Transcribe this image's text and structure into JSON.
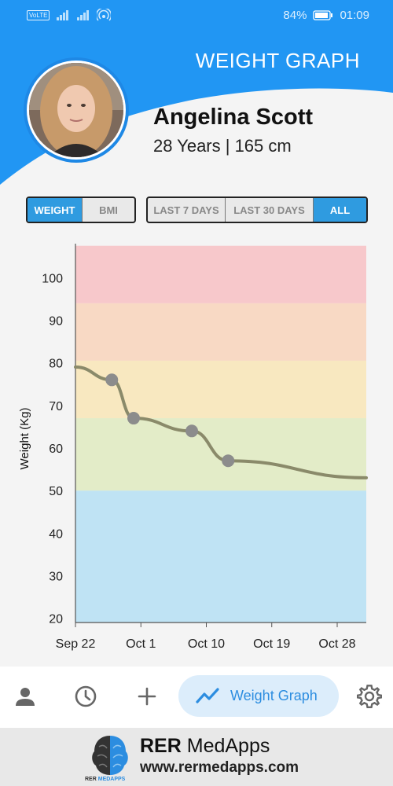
{
  "status_bar": {
    "battery": "84%",
    "time": "01:09",
    "sim_label": "VoLTE"
  },
  "header": {
    "title": "WEIGHT GRAPH",
    "user_name": "Angelina Scott",
    "user_meta": "28 Years | 165 cm"
  },
  "metric_toggle": {
    "options": [
      "WEIGHT",
      "BMI"
    ],
    "selected": "WEIGHT"
  },
  "range_toggle": {
    "options": [
      "LAST 7 DAYS",
      "LAST 30 DAYS",
      "ALL"
    ],
    "selected": "ALL"
  },
  "chart_data": {
    "type": "line",
    "xlabel": "",
    "ylabel": "Weight (Kg)",
    "x_ticks": [
      "Sep 22",
      "Oct 1",
      "Oct 10",
      "Oct 19",
      "Oct 28"
    ],
    "x_tick_days": [
      0,
      9,
      18,
      27,
      36
    ],
    "y_ticks": [
      20,
      30,
      40,
      50,
      60,
      70,
      80,
      90,
      100
    ],
    "ylim": [
      19,
      108
    ],
    "xlim_days": [
      0,
      40
    ],
    "bands": [
      {
        "from": 19,
        "to": 50,
        "color": "#bfe3f4"
      },
      {
        "from": 50,
        "to": 67,
        "color": "#e3ecc8"
      },
      {
        "from": 67,
        "to": 80.5,
        "color": "#f8e8c0"
      },
      {
        "from": 80.5,
        "to": 94,
        "color": "#f8d9c4"
      },
      {
        "from": 94,
        "to": 107.5,
        "color": "#f7c8cb"
      }
    ],
    "line": [
      {
        "x": "Sep 22",
        "y": 79
      },
      {
        "x": "Sep 27",
        "y": 76
      },
      {
        "x": "Sep 30",
        "y": 67
      },
      {
        "x": "Oct 8",
        "y": 64
      },
      {
        "x": "Oct 13",
        "y": 57
      },
      {
        "x": "Nov 1",
        "y": 53
      }
    ],
    "points": [
      {
        "x": "Sep 27",
        "y": 76
      },
      {
        "x": "Sep 30",
        "y": 67
      },
      {
        "x": "Oct 8",
        "y": 64
      },
      {
        "x": "Oct 13",
        "y": 57
      }
    ],
    "line_color": "#8a8a6a",
    "point_color": "#8c8c8c",
    "grid": false
  },
  "bottom_nav": {
    "active_label": "Weight Graph",
    "icons": [
      "profile-icon",
      "history-icon",
      "add-icon",
      "trend-icon",
      "settings-icon"
    ]
  },
  "ad": {
    "brand_bold": "RER",
    "brand_rest": " MedApps",
    "url": "www.rermedapps.com",
    "logo_caption_a": "RER ",
    "logo_caption_b": "MEDAPPS"
  },
  "colors": {
    "primary": "#2196f3",
    "accent": "#2f9be0"
  }
}
